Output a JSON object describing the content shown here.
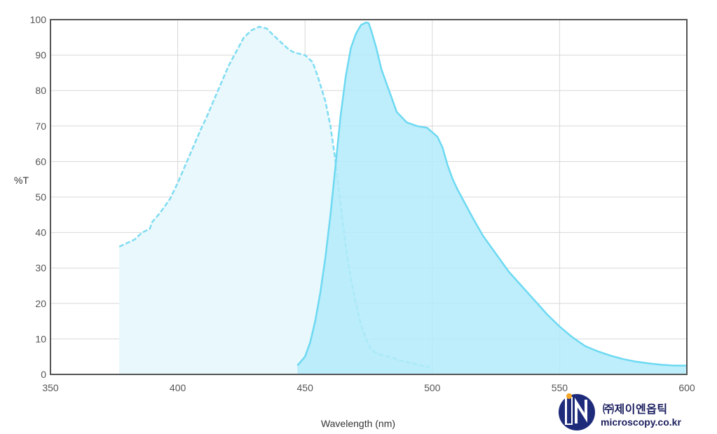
{
  "chart_data": {
    "type": "area",
    "xlabel": "Wavelength (nm)",
    "ylabel": "%T",
    "xlim": [
      350,
      600
    ],
    "ylim": [
      0,
      100
    ],
    "xticks": [
      "350",
      "400",
      "450",
      "500",
      "550",
      "600"
    ],
    "yticks": [
      "0",
      "10",
      "20",
      "30",
      "40",
      "50",
      "60",
      "70",
      "80",
      "90",
      "100"
    ],
    "grid": true,
    "series": [
      {
        "style": "dashed",
        "color": "#7fdcf2",
        "fill": "#e8f8fd",
        "x": [
          377,
          380,
          383,
          386,
          389,
          390,
          393,
          397,
          400,
          403,
          406,
          409,
          411,
          414,
          417,
          420,
          423,
          426,
          429,
          432,
          435,
          437,
          440,
          443,
          445,
          447,
          450,
          453,
          455,
          458,
          460,
          462,
          464,
          466,
          468,
          470,
          472,
          474,
          476,
          478,
          480,
          483,
          485,
          487,
          490,
          493,
          496,
          499
        ],
        "y": [
          36,
          37,
          38,
          40,
          41,
          43,
          45.5,
          49.5,
          54,
          59,
          64,
          69,
          72,
          77,
          82,
          87,
          91,
          95,
          97,
          98,
          97.5,
          96,
          94,
          92,
          91,
          90.5,
          90,
          88,
          84,
          77,
          70,
          60,
          48,
          36,
          27,
          20,
          14,
          10,
          7,
          6,
          5.5,
          5,
          4.5,
          4,
          3.5,
          3,
          2.5,
          2
        ]
      },
      {
        "style": "solid",
        "color": "#6dd9f2",
        "fill": "#b3ebfa",
        "x": [
          447,
          450,
          452,
          454,
          456,
          458,
          460,
          462,
          464,
          466,
          468,
          470,
          472,
          474,
          475,
          476,
          478,
          480,
          483,
          486,
          490,
          494,
          498,
          502,
          504,
          506,
          508,
          510,
          513,
          516,
          520,
          525,
          530,
          535,
          540,
          545,
          550,
          555,
          560,
          565,
          570,
          575,
          580,
          585,
          590,
          595,
          600
        ],
        "y": [
          2.5,
          5,
          9,
          15,
          23,
          33,
          45,
          59,
          73,
          84,
          92,
          96,
          98.5,
          99.2,
          99,
          97,
          92,
          86,
          80,
          74,
          71,
          70,
          69.5,
          67,
          64,
          59,
          55,
          52,
          48,
          44,
          39,
          34,
          29,
          25,
          21,
          17,
          13.5,
          10.5,
          8,
          6.5,
          5.3,
          4.3,
          3.6,
          3.1,
          2.7,
          2.5,
          2.5
        ]
      }
    ]
  },
  "logo": {
    "company": "㈜제이엔옵틱",
    "url": "microscopy.co.kr"
  }
}
